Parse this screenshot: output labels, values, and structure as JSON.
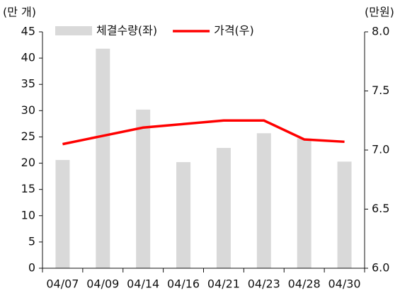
{
  "chart_data": {
    "type": "bar_line",
    "y_label": "(만 개)",
    "y2_label": "(만원)",
    "categories": [
      "04/07",
      "04/09",
      "04/14",
      "04/16",
      "04/21",
      "04/23",
      "04/28",
      "04/30"
    ],
    "series": [
      {
        "name": "체결수량(좌)",
        "type": "bar",
        "color": "#d9d9d9",
        "axis": "y",
        "values": [
          20.6,
          41.8,
          30.2,
          20.2,
          22.9,
          25.7,
          24.7,
          20.3
        ]
      },
      {
        "name": "가격(우)",
        "type": "line",
        "color": "#ff0000",
        "axis": "y2",
        "values": [
          7.05,
          7.12,
          7.19,
          7.22,
          7.25,
          7.25,
          7.09,
          7.07
        ]
      }
    ],
    "ylim": [
      0,
      45
    ],
    "yticks": [
      0,
      5,
      10,
      15,
      20,
      25,
      30,
      35,
      40,
      45
    ],
    "y2lim": [
      6.0,
      8.0
    ],
    "y2ticks": [
      {
        "value": 6.0,
        "label": "6.0"
      },
      {
        "value": 6.5,
        "label": "6.5"
      },
      {
        "value": 7.0,
        "label": "7.0"
      },
      {
        "value": 7.5,
        "label": "7.5"
      },
      {
        "value": 8.0,
        "label": "8.0"
      }
    ]
  }
}
